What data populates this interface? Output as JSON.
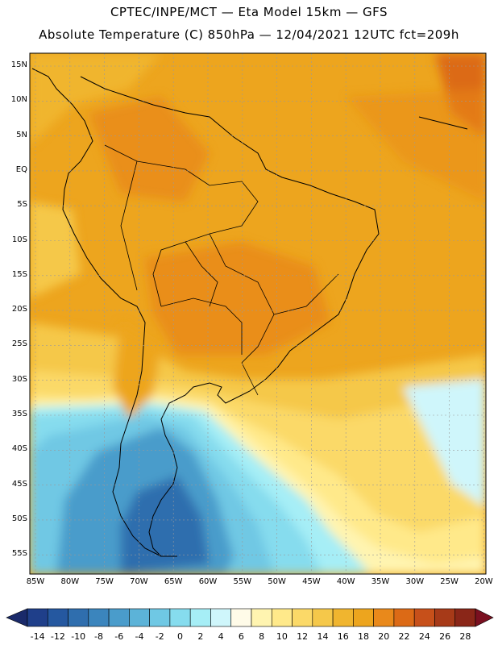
{
  "header": {
    "line1": "CPTEC/INPE/MCT — Eta Model 15km — GFS",
    "line2": "Absolute Temperature (C) 850hPa — 12/04/2021 12UTC fct=209h"
  },
  "map": {
    "lat_labels": [
      "15N",
      "10N",
      "5N",
      "EQ",
      "5S",
      "10S",
      "15S",
      "20S",
      "25S",
      "30S",
      "35S",
      "40S",
      "45S",
      "50S",
      "55S"
    ],
    "lon_labels": [
      "85W",
      "80W",
      "75W",
      "70W",
      "65W",
      "60W",
      "55W",
      "50W",
      "45W",
      "40W",
      "35W",
      "30W",
      "25W",
      "20W"
    ]
  },
  "colorbar": {
    "labels": [
      "-14",
      "-12",
      "-10",
      "-8",
      "-6",
      "-4",
      "-2",
      "0",
      "2",
      "4",
      "6",
      "8",
      "10",
      "12",
      "14",
      "16",
      "18",
      "20",
      "22",
      "24",
      "26",
      "28"
    ],
    "colors": [
      "#1f3f8a",
      "#2558a0",
      "#2f6eae",
      "#3b85bd",
      "#4a9ccb",
      "#5cb3d8",
      "#6fc8e4",
      "#86dcee",
      "#a6eef6",
      "#cff6fb",
      "#fffbe8",
      "#fff4b0",
      "#ffe98a",
      "#fbd968",
      "#f5c84a",
      "#f0b52f",
      "#eda51e",
      "#e9891b",
      "#dc6a16",
      "#c7501a",
      "#a73a18",
      "#8a2618"
    ],
    "left_arrow_color": "#1a2a6a",
    "right_arrow_color": "#7a1020"
  }
}
